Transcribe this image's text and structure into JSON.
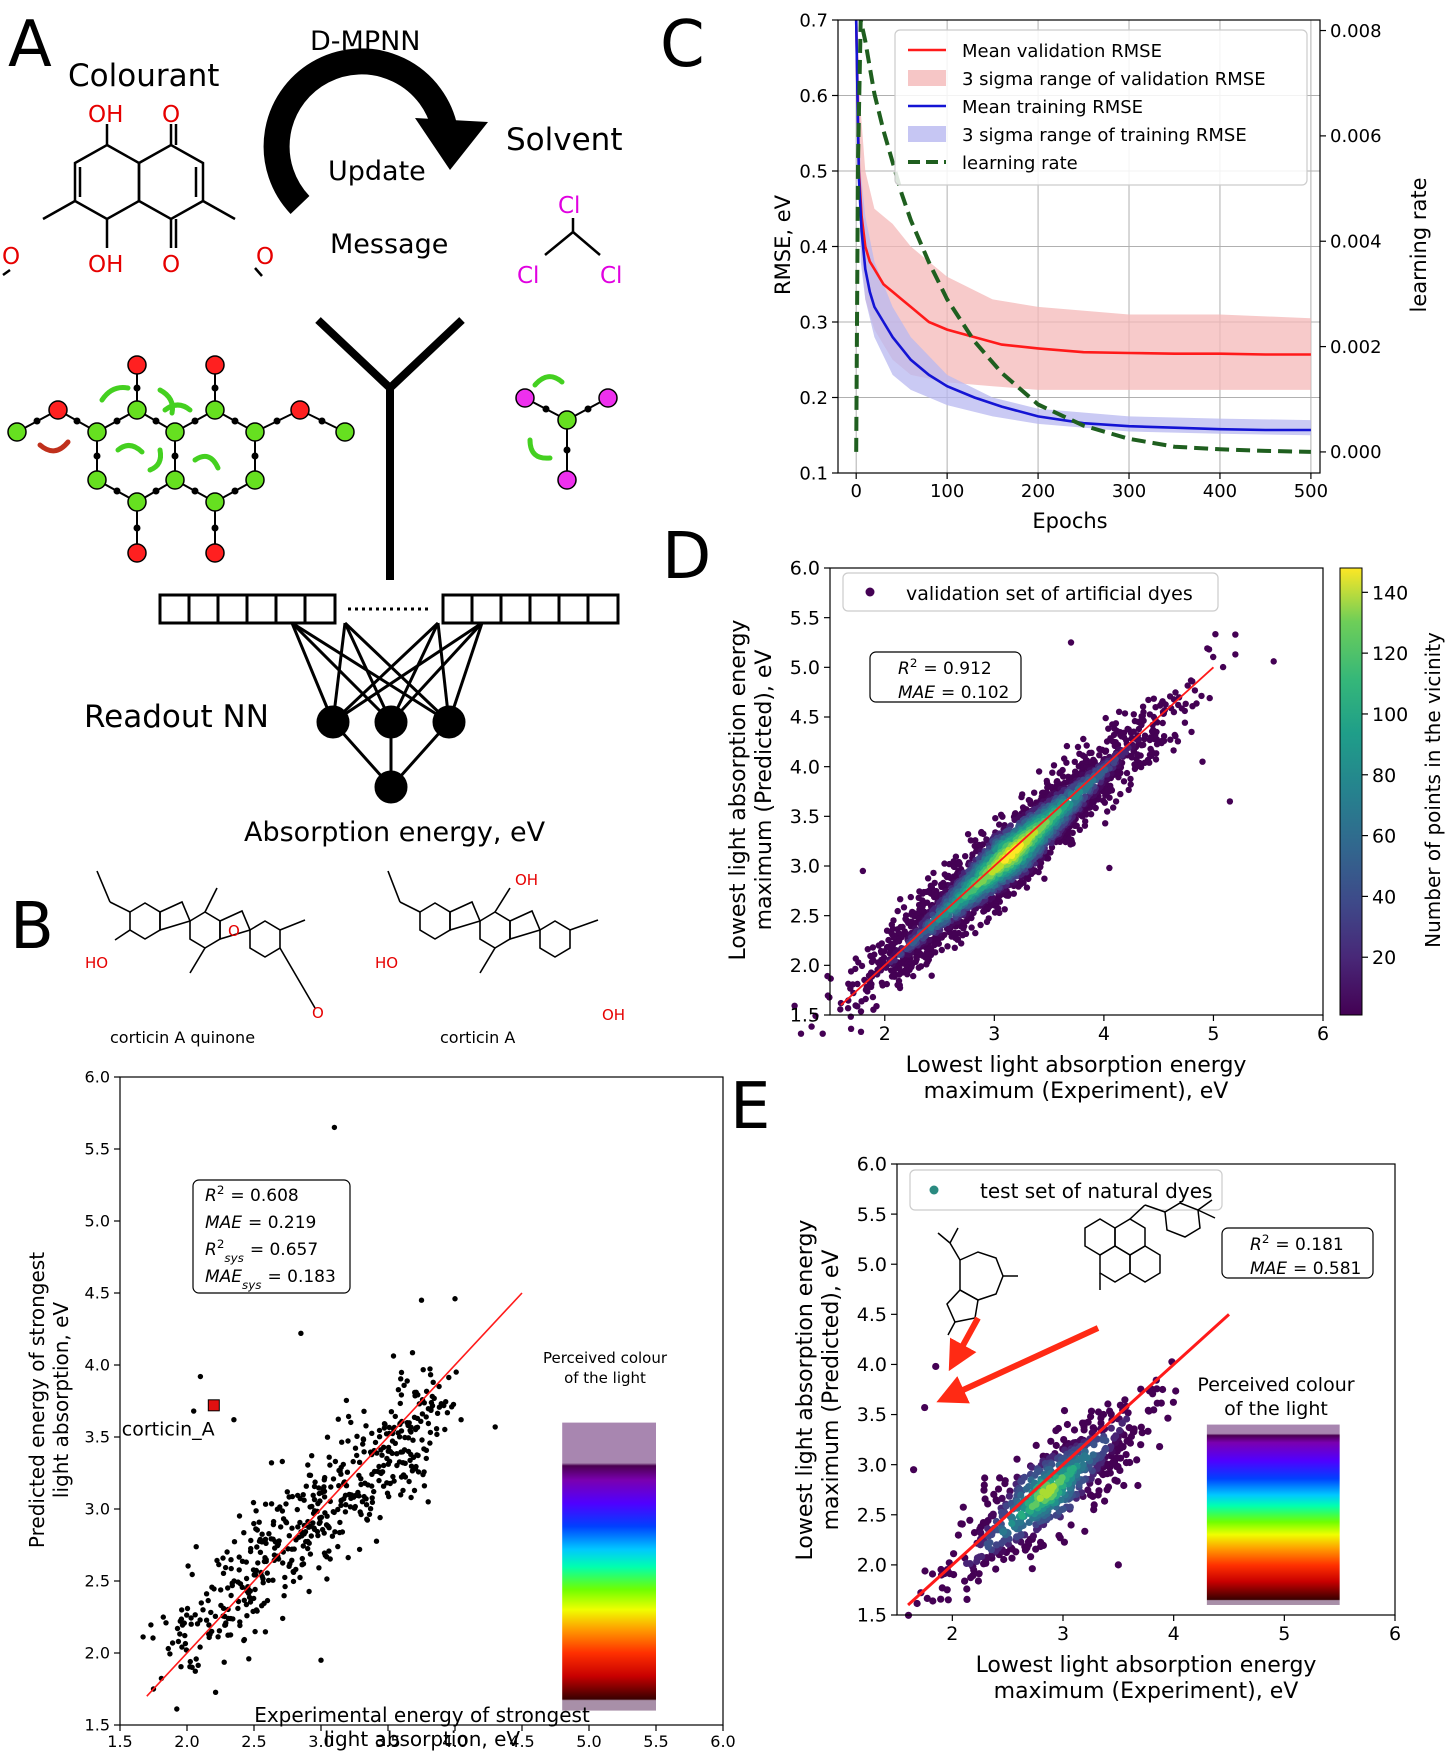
{
  "panels": {
    "A": {
      "letter": "A",
      "colourant_label": "Colourant",
      "dmpnn_label": "D-MPNN",
      "update_label": "Update",
      "message_label": "Message",
      "solvent_label": "Solvent",
      "readout_label": "Readout NN",
      "absorption_label": "Absorption energy, eV",
      "atoms": {
        "oh": "OH",
        "o": "O",
        "cl": "Cl"
      }
    },
    "B": {
      "letter": "B",
      "mol1_name": "corticin A quinone",
      "mol2_name": "corticin A",
      "atoms": {
        "ho": "HO",
        "oh": "OH",
        "o": "O"
      }
    },
    "C": {
      "letter": "C"
    },
    "D": {
      "letter": "D"
    },
    "E": {
      "letter": "E"
    }
  },
  "chart_data": [
    {
      "id": "B",
      "type": "scatter",
      "xlabel": [
        "Experimental energy of strongest",
        "light absorption, eV"
      ],
      "ylabel": [
        "Predicted energy of strongest",
        "light absorption, eV"
      ],
      "xlim": [
        1.5,
        6.0
      ],
      "ylim": [
        1.5,
        6.0
      ],
      "xticks": [
        "1.5",
        "2.0",
        "2.5",
        "3.0",
        "3.5",
        "4.0",
        "4.5",
        "5.0",
        "5.5",
        "6.0"
      ],
      "yticks": [
        "1.5",
        "2.0",
        "2.5",
        "3.0",
        "3.5",
        "4.0",
        "4.5",
        "5.0",
        "5.5",
        "6.0"
      ],
      "stats": [
        "R² = 0.608",
        "MAE = 0.219",
        "R²sys = 0.657",
        "MAEsys = 0.183"
      ],
      "stat_parts": [
        [
          "R",
          "2",
          "",
          "= 0.608"
        ],
        [
          "MAE",
          "",
          "",
          "= 0.219"
        ],
        [
          "R",
          "2",
          "sys",
          "= 0.657"
        ],
        [
          "MAE",
          "",
          "sys",
          "= 0.183"
        ]
      ],
      "highlight": {
        "label": "corticin_A",
        "x": 2.2,
        "y": 3.72
      },
      "outliers": [
        [
          3.1,
          5.65
        ],
        [
          2.85,
          4.22
        ],
        [
          4.0,
          4.46
        ],
        [
          3.75,
          4.45
        ],
        [
          4.3,
          3.57
        ],
        [
          2.05,
          3.68
        ],
        [
          2.1,
          3.92
        ],
        [
          3.8,
          3.05
        ],
        [
          2.35,
          3.62
        ],
        [
          3.0,
          1.95
        ],
        [
          1.75,
          1.75
        ]
      ],
      "fit_line": [
        [
          1.7,
          1.7
        ],
        [
          4.5,
          4.5
        ]
      ],
      "colour_bar": {
        "title": [
          "Perceived colour",
          "of the light"
        ],
        "x_range": [
          4.8,
          5.5
        ],
        "y_range": [
          1.6,
          3.6
        ]
      }
    },
    {
      "id": "C",
      "type": "line",
      "xlabel": "Epochs",
      "ylabel": "RMSE, eV",
      "y2label": "learning rate",
      "xlim": [
        -20,
        510
      ],
      "ylim": [
        0.1,
        0.7
      ],
      "y2lim": [
        -0.0004,
        0.0082
      ],
      "xticks": [
        0,
        100,
        200,
        300,
        400,
        500
      ],
      "yticks": [
        "0.1",
        "0.2",
        "0.3",
        "0.4",
        "0.5",
        "0.6",
        "0.7"
      ],
      "y2ticks": [
        "0.000",
        "0.002",
        "0.004",
        "0.006",
        "0.008"
      ],
      "grid": true,
      "legend_position": "top-right",
      "series": [
        {
          "name": "Mean validation RMSE",
          "color": "#ff1a1a",
          "x": [
            0,
            3,
            6,
            10,
            15,
            20,
            30,
            40,
            50,
            60,
            80,
            100,
            130,
            160,
            200,
            250,
            300,
            350,
            400,
            450,
            500
          ],
          "y": [
            0.7,
            0.5,
            0.44,
            0.4,
            0.38,
            0.37,
            0.35,
            0.34,
            0.33,
            0.32,
            0.3,
            0.29,
            0.28,
            0.27,
            0.265,
            0.26,
            0.259,
            0.258,
            0.258,
            0.257,
            0.257
          ]
        },
        {
          "name": "3 sigma range of validation RMSE",
          "color": "#f4b8b8",
          "x": [
            0,
            5,
            10,
            20,
            40,
            60,
            100,
            150,
            200,
            300,
            400,
            500
          ],
          "upper": [
            0.7,
            0.58,
            0.5,
            0.45,
            0.43,
            0.4,
            0.36,
            0.33,
            0.32,
            0.31,
            0.31,
            0.305
          ],
          "lower": [
            0.7,
            0.4,
            0.33,
            0.29,
            0.25,
            0.23,
            0.22,
            0.215,
            0.21,
            0.21,
            0.21,
            0.21
          ]
        },
        {
          "name": "Mean training RMSE",
          "color": "#1414d4",
          "x": [
            0,
            3,
            6,
            10,
            15,
            20,
            30,
            40,
            50,
            60,
            80,
            100,
            130,
            160,
            200,
            250,
            300,
            350,
            400,
            450,
            500
          ],
          "y": [
            0.7,
            0.49,
            0.42,
            0.37,
            0.34,
            0.32,
            0.3,
            0.28,
            0.265,
            0.25,
            0.23,
            0.215,
            0.2,
            0.188,
            0.175,
            0.166,
            0.162,
            0.16,
            0.158,
            0.157,
            0.157
          ]
        },
        {
          "name": "3 sigma range of training RMSE",
          "color": "#b8b8f0",
          "x": [
            0,
            5,
            10,
            20,
            40,
            60,
            100,
            150,
            200,
            300,
            400,
            500
          ],
          "upper": [
            0.7,
            0.5,
            0.44,
            0.38,
            0.32,
            0.28,
            0.23,
            0.2,
            0.185,
            0.175,
            0.172,
            0.17
          ],
          "lower": [
            0.7,
            0.38,
            0.33,
            0.28,
            0.23,
            0.21,
            0.19,
            0.175,
            0.165,
            0.155,
            0.152,
            0.15
          ]
        },
        {
          "name": "learning rate",
          "color": "#1f5f1f",
          "axis": "right",
          "x": [
            0,
            2,
            5,
            10,
            15,
            20,
            30,
            40,
            50,
            60,
            80,
            100,
            130,
            160,
            200,
            250,
            300,
            350,
            400,
            450,
            500
          ],
          "y": [
            0.0,
            0.0055,
            0.0082,
            0.0078,
            0.0073,
            0.0068,
            0.0061,
            0.0055,
            0.0049,
            0.0044,
            0.0036,
            0.0029,
            0.0021,
            0.0015,
            0.0009,
            0.0005,
            0.00025,
            0.0001,
            5e-05,
            2e-05,
            0.0
          ]
        }
      ]
    },
    {
      "id": "D",
      "type": "scatter",
      "xlabel": [
        "Lowest light absorption energy",
        "maximum (Experiment), eV"
      ],
      "ylabel": [
        "Lowest light absorption energy",
        "maximum (Predicted), eV"
      ],
      "xlim": [
        1.5,
        6.0
      ],
      "ylim": [
        1.5,
        6.0
      ],
      "xticks": [
        "2",
        "3",
        "4",
        "5",
        "6"
      ],
      "yticks": [
        "1.5",
        "2.0",
        "2.5",
        "3.0",
        "3.5",
        "4.0",
        "4.5",
        "5.0",
        "5.5",
        "6.0"
      ],
      "legend": "validation set of artificial dyes",
      "stats": [
        "R² = 0.912",
        "MAE = 0.102"
      ],
      "stat_parts": [
        [
          "R",
          "2",
          "",
          "= 0.912"
        ],
        [
          "MAE",
          "",
          "",
          "= 0.102"
        ]
      ],
      "colorbar_label": "Number of points in the vicinity",
      "colorbar_ticks": [
        "20",
        "40",
        "60",
        "80",
        "100",
        "120",
        "140"
      ],
      "colorbar_range": [
        1,
        148
      ],
      "outliers": [
        [
          3.7,
          5.25
        ],
        [
          5.2,
          5.33
        ],
        [
          5.55,
          5.06
        ],
        [
          5.2,
          5.13
        ],
        [
          5.15,
          3.65
        ],
        [
          4.05,
          2.98
        ],
        [
          1.8,
          2.95
        ],
        [
          4.8,
          4.35
        ],
        [
          4.9,
          4.05
        ],
        [
          1.6,
          1.62
        ]
      ],
      "fit_line": [
        [
          1.6,
          1.6
        ],
        [
          5.0,
          5.0
        ]
      ]
    },
    {
      "id": "E",
      "type": "scatter",
      "xlabel": [
        "Lowest light absorption energy",
        "maximum (Experiment), eV"
      ],
      "ylabel": [
        "Lowest light absorption energy",
        "maximum (Predicted), eV"
      ],
      "xlim": [
        1.5,
        6.0
      ],
      "ylim": [
        1.5,
        6.0
      ],
      "xticks": [
        "2",
        "3",
        "4",
        "5",
        "6"
      ],
      "yticks": [
        "1.5",
        "2.0",
        "2.5",
        "3.0",
        "3.5",
        "4.0",
        "4.5",
        "5.0",
        "5.5",
        "6.0"
      ],
      "legend": "test set of natural dyes",
      "stats": [
        "R² = 0.181",
        "MAE = 0.581"
      ],
      "stat_parts": [
        [
          "R",
          "2",
          "",
          "= 0.181"
        ],
        [
          "MAE",
          "",
          "",
          "= 0.581"
        ]
      ],
      "highlight_points": [
        [
          1.85,
          3.98
        ],
        [
          1.75,
          3.57
        ]
      ],
      "outliers": [
        [
          1.65,
          2.95
        ],
        [
          3.9,
          3.75
        ],
        [
          3.5,
          2.0
        ]
      ],
      "fit_line": [
        [
          1.6,
          1.6
        ],
        [
          4.5,
          4.5
        ]
      ],
      "colour_bar": {
        "title": [
          "Perceived colour",
          "of the light"
        ],
        "x_range": [
          4.3,
          5.5
        ],
        "y_range": [
          1.6,
          3.4
        ]
      }
    }
  ]
}
